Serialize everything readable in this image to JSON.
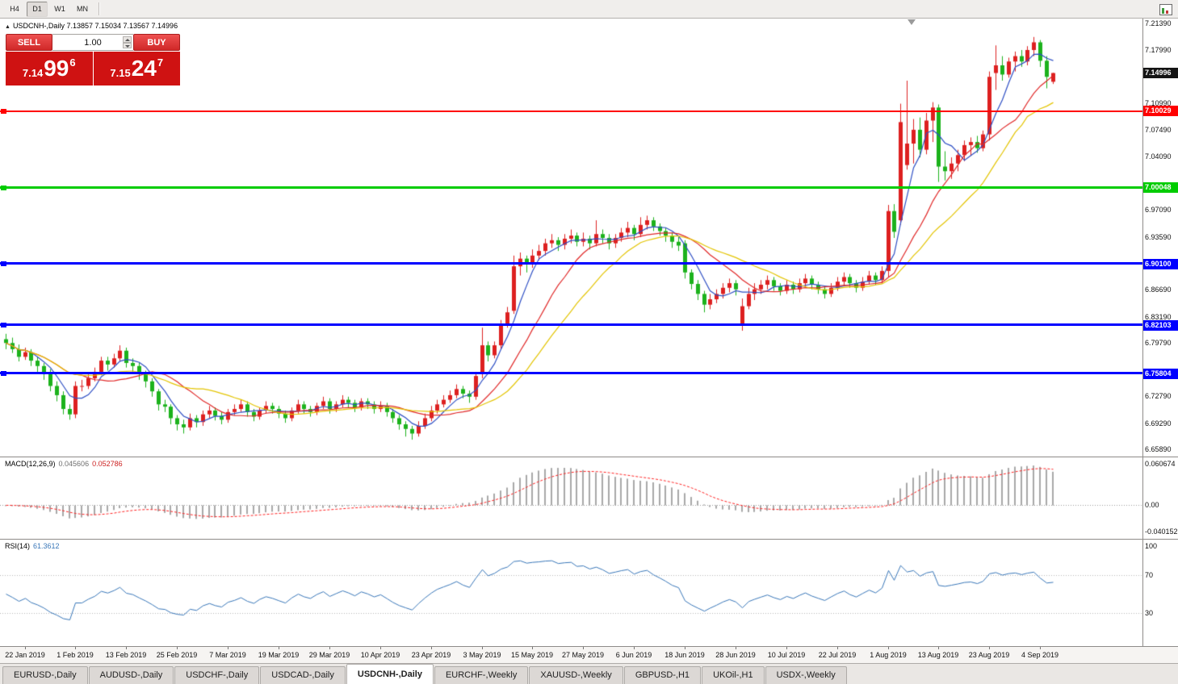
{
  "toolbar": {
    "timeframes": [
      {
        "label": "H4",
        "active": false
      },
      {
        "label": "D1",
        "active": true
      },
      {
        "label": "W1",
        "active": false
      },
      {
        "label": "MN",
        "active": false
      }
    ]
  },
  "chart": {
    "title": "USDCNH-,Daily 7.13857 7.15034 7.13567 7.14996",
    "collapse_arrow": "▲"
  },
  "trade_panel": {
    "sell_button": "SELL",
    "buy_button": "BUY",
    "volume": "1.00",
    "sell_price": {
      "prefix": "7.14",
      "pips": "99",
      "sup": "6"
    },
    "buy_price": {
      "prefix": "7.15",
      "pips": "24",
      "sup": "7"
    }
  },
  "indicators": {
    "macd_name": "MACD(12,26,9)",
    "macd_value_main": "0.045606",
    "macd_value_signal": "0.052786",
    "rsi_name": "RSI(14)",
    "rsi_value": "61.3612"
  },
  "tabs": [
    {
      "label": "EURUSD-,Daily",
      "active": false
    },
    {
      "label": "AUDUSD-,Daily",
      "active": false
    },
    {
      "label": "USDCHF-,Daily",
      "active": false
    },
    {
      "label": "USDCAD-,Daily",
      "active": false
    },
    {
      "label": "USDCNH-,Daily",
      "active": true
    },
    {
      "label": "EURCHF-,Weekly",
      "active": false
    },
    {
      "label": "XAUUSD-,Weekly",
      "active": false
    },
    {
      "label": "GBPUSD-,H1",
      "active": false
    },
    {
      "label": "UKOil-,H1",
      "active": false
    },
    {
      "label": "USDX-,Weekly",
      "active": false
    }
  ],
  "chart_data": {
    "type": "candlestick",
    "symbol": "USDCNH-",
    "timeframe": "Daily",
    "ohlc_current": {
      "open": 7.13857,
      "high": 7.15034,
      "low": 7.13567,
      "close": 7.14996
    },
    "bull_color": "#dd2020",
    "bear_color": "#1cb21c",
    "y_domain": [
      6.65,
      7.221
    ],
    "price_axis_labels": [
      "7.21390",
      "7.17990",
      "7.10990",
      "7.07490",
      "7.04090",
      "6.97090",
      "6.93590",
      "6.86690",
      "6.83190",
      "6.79790",
      "6.72790",
      "6.69290",
      "6.65890"
    ],
    "price_tags": {
      "current": {
        "label": "7.14996",
        "value": 7.14996,
        "bg": "#141414"
      }
    },
    "hlines": [
      {
        "price": 7.10029,
        "label": "7.10029",
        "color": "#ff0000",
        "width": 2
      },
      {
        "price": 7.00048,
        "label": "7.00048",
        "color": "#00cc00",
        "width": 3
      },
      {
        "price": 6.901,
        "label": "6.90100",
        "color": "#0000ff",
        "width": 3
      },
      {
        "price": 6.82103,
        "label": "6.82103",
        "color": "#0000ff",
        "width": 3
      },
      {
        "price": 6.75804,
        "label": "6.75804",
        "color": "#0000ff",
        "width": 3
      }
    ],
    "moving_averages": [
      {
        "name": "fast",
        "period": 5,
        "color": "#2e4fc4"
      },
      {
        "name": "medium",
        "period": 13,
        "color": "#e02828"
      },
      {
        "name": "slow",
        "period": 21,
        "color": "#e3c400"
      }
    ],
    "macd": {
      "fast": 12,
      "slow": 26,
      "signal": 9,
      "value_main": 0.045606,
      "value_signal": 0.052786,
      "domain": [
        -0.05,
        0.0715
      ],
      "axis_labels": [
        "0.060674",
        "0.00",
        "-0.040152"
      ],
      "histogram_color": "#a8a8a8",
      "signal_color": "#ff2020"
    },
    "rsi": {
      "period": 14,
      "value": 61.3612,
      "levels": [
        100,
        70,
        30
      ],
      "axis_labels": [
        "100",
        "70",
        "30"
      ],
      "color": "#3876b8"
    },
    "x_labels": [
      {
        "i": 3,
        "t": "22 Jan 2019"
      },
      {
        "i": 11,
        "t": "1 Feb 2019"
      },
      {
        "i": 19,
        "t": "13 Feb 2019"
      },
      {
        "i": 27,
        "t": "25 Feb 2019"
      },
      {
        "i": 35,
        "t": "7 Mar 2019"
      },
      {
        "i": 43,
        "t": "19 Mar 2019"
      },
      {
        "i": 51,
        "t": "29 Mar 2019"
      },
      {
        "i": 59,
        "t": "10 Apr 2019"
      },
      {
        "i": 67,
        "t": "23 Apr 2019"
      },
      {
        "i": 75,
        "t": "3 May 2019"
      },
      {
        "i": 83,
        "t": "15 May 2019"
      },
      {
        "i": 91,
        "t": "27 May 2019"
      },
      {
        "i": 99,
        "t": "6 Jun 2019"
      },
      {
        "i": 107,
        "t": "18 Jun 2019"
      },
      {
        "i": 115,
        "t": "28 Jun 2019"
      },
      {
        "i": 123,
        "t": "10 Jul 2019"
      },
      {
        "i": 131,
        "t": "22 Jul 2019"
      },
      {
        "i": 139,
        "t": "1 Aug 2019"
      },
      {
        "i": 147,
        "t": "13 Aug 2019"
      },
      {
        "i": 155,
        "t": "23 Aug 2019"
      },
      {
        "i": 163,
        "t": "4 Sep 2019"
      }
    ],
    "candles": [
      [
        6.803,
        6.81,
        6.79,
        6.798
      ],
      [
        6.798,
        6.805,
        6.785,
        6.79
      ],
      [
        6.79,
        6.796,
        6.774,
        6.78
      ],
      [
        6.78,
        6.792,
        6.776,
        6.786
      ],
      [
        6.786,
        6.79,
        6.768,
        6.775
      ],
      [
        6.775,
        6.78,
        6.76,
        6.768
      ],
      [
        6.768,
        6.772,
        6.75,
        6.758
      ],
      [
        6.758,
        6.764,
        6.735,
        6.742
      ],
      [
        6.742,
        6.748,
        6.722,
        6.73
      ],
      [
        6.73,
        6.735,
        6.705,
        6.712
      ],
      [
        6.712,
        6.718,
        6.698,
        6.705
      ],
      [
        6.705,
        6.748,
        6.7,
        6.742
      ],
      [
        6.742,
        6.75,
        6.735,
        6.742
      ],
      [
        6.742,
        6.758,
        6.738,
        6.752
      ],
      [
        6.752,
        6.766,
        6.748,
        6.76
      ],
      [
        6.76,
        6.78,
        6.756,
        6.775
      ],
      [
        6.775,
        6.78,
        6.762,
        6.77
      ],
      [
        6.77,
        6.784,
        6.766,
        6.778
      ],
      [
        6.778,
        6.795,
        6.774,
        6.788
      ],
      [
        6.788,
        6.792,
        6.766,
        6.772
      ],
      [
        6.772,
        6.778,
        6.76,
        6.768
      ],
      [
        6.768,
        6.772,
        6.75,
        6.758
      ],
      [
        6.758,
        6.762,
        6.74,
        6.748
      ],
      [
        6.748,
        6.752,
        6.728,
        6.735
      ],
      [
        6.735,
        6.738,
        6.71,
        6.718
      ],
      [
        6.718,
        6.724,
        6.708,
        6.715
      ],
      [
        6.715,
        6.718,
        6.692,
        6.7
      ],
      [
        6.7,
        6.704,
        6.684,
        6.692
      ],
      [
        6.692,
        6.698,
        6.68,
        6.688
      ],
      [
        6.688,
        6.706,
        6.684,
        6.7
      ],
      [
        6.7,
        6.704,
        6.688,
        6.695
      ],
      [
        6.695,
        6.71,
        6.69,
        6.705
      ],
      [
        6.705,
        6.716,
        6.7,
        6.71
      ],
      [
        6.71,
        6.714,
        6.697,
        6.703
      ],
      [
        6.703,
        6.708,
        6.692,
        6.698
      ],
      [
        6.698,
        6.712,
        6.694,
        6.708
      ],
      [
        6.708,
        6.718,
        6.704,
        6.712
      ],
      [
        6.712,
        6.724,
        6.708,
        6.718
      ],
      [
        6.718,
        6.722,
        6.702,
        6.708
      ],
      [
        6.708,
        6.712,
        6.696,
        6.702
      ],
      [
        6.702,
        6.714,
        6.698,
        6.71
      ],
      [
        6.71,
        6.722,
        6.706,
        6.716
      ],
      [
        6.716,
        6.72,
        6.706,
        6.712
      ],
      [
        6.712,
        6.716,
        6.7,
        6.706
      ],
      [
        6.706,
        6.71,
        6.694,
        6.7
      ],
      [
        6.7,
        6.714,
        6.696,
        6.71
      ],
      [
        6.71,
        6.724,
        6.706,
        6.718
      ],
      [
        6.718,
        6.722,
        6.706,
        6.712
      ],
      [
        6.712,
        6.716,
        6.702,
        6.708
      ],
      [
        6.708,
        6.72,
        6.704,
        6.716
      ],
      [
        6.716,
        6.728,
        6.712,
        6.722
      ],
      [
        6.722,
        6.726,
        6.706,
        6.712
      ],
      [
        6.712,
        6.722,
        6.708,
        6.718
      ],
      [
        6.718,
        6.73,
        6.714,
        6.724
      ],
      [
        6.724,
        6.728,
        6.714,
        6.72
      ],
      [
        6.72,
        6.724,
        6.708,
        6.714
      ],
      [
        6.714,
        6.726,
        6.71,
        6.722
      ],
      [
        6.722,
        6.726,
        6.712,
        6.718
      ],
      [
        6.718,
        6.722,
        6.706,
        6.712
      ],
      [
        6.712,
        6.722,
        6.708,
        6.716
      ],
      [
        6.716,
        6.72,
        6.702,
        6.708
      ],
      [
        6.708,
        6.712,
        6.694,
        6.7
      ],
      [
        6.7,
        6.704,
        6.685,
        6.692
      ],
      [
        6.692,
        6.696,
        6.676,
        6.686
      ],
      [
        6.686,
        6.69,
        6.672,
        6.68
      ],
      [
        6.68,
        6.696,
        6.676,
        6.69
      ],
      [
        6.69,
        6.706,
        6.686,
        6.7
      ],
      [
        6.7,
        6.716,
        6.696,
        6.71
      ],
      [
        6.71,
        6.724,
        6.706,
        6.718
      ],
      [
        6.718,
        6.73,
        6.714,
        6.724
      ],
      [
        6.724,
        6.736,
        6.72,
        6.73
      ],
      [
        6.73,
        6.744,
        6.726,
        6.738
      ],
      [
        6.738,
        6.742,
        6.726,
        6.732
      ],
      [
        6.732,
        6.736,
        6.72,
        6.728
      ],
      [
        6.728,
        6.76,
        6.724,
        6.755
      ],
      [
        6.758,
        6.818,
        6.752,
        6.795
      ],
      [
        6.795,
        6.8,
        6.774,
        6.782
      ],
      [
        6.782,
        6.8,
        6.778,
        6.795
      ],
      [
        6.795,
        6.828,
        6.79,
        6.822
      ],
      [
        6.822,
        6.845,
        6.818,
        6.838
      ],
      [
        6.84,
        6.912,
        6.836,
        6.898
      ],
      [
        6.898,
        6.916,
        6.886,
        6.908
      ],
      [
        6.908,
        6.912,
        6.89,
        6.902
      ],
      [
        6.902,
        6.92,
        6.896,
        6.912
      ],
      [
        6.912,
        6.926,
        6.906,
        6.918
      ],
      [
        6.918,
        6.934,
        6.912,
        6.928
      ],
      [
        6.928,
        6.94,
        6.922,
        6.932
      ],
      [
        6.932,
        6.936,
        6.918,
        6.926
      ],
      [
        6.926,
        6.94,
        6.92,
        6.934
      ],
      [
        6.934,
        6.946,
        6.928,
        6.938
      ],
      [
        6.938,
        6.942,
        6.924,
        6.93
      ],
      [
        6.93,
        6.942,
        6.924,
        6.934
      ],
      [
        6.934,
        6.938,
        6.92,
        6.928
      ],
      [
        6.928,
        6.958,
        6.924,
        6.94
      ],
      [
        6.94,
        6.946,
        6.928,
        6.935
      ],
      [
        6.935,
        6.94,
        6.92,
        6.928
      ],
      [
        6.928,
        6.94,
        6.922,
        6.935
      ],
      [
        6.935,
        6.948,
        6.93,
        6.942
      ],
      [
        6.942,
        6.956,
        6.936,
        6.948
      ],
      [
        6.948,
        6.952,
        6.932,
        6.94
      ],
      [
        6.94,
        6.962,
        6.936,
        6.952
      ],
      [
        6.952,
        6.964,
        6.946,
        6.958
      ],
      [
        6.958,
        6.962,
        6.944,
        6.95
      ],
      [
        6.95,
        6.954,
        6.938,
        6.944
      ],
      [
        6.944,
        6.948,
        6.93,
        6.938
      ],
      [
        6.938,
        6.942,
        6.922,
        6.93
      ],
      [
        6.93,
        6.936,
        6.918,
        6.925
      ],
      [
        6.928,
        6.932,
        6.882,
        6.89
      ],
      [
        6.89,
        6.894,
        6.868,
        6.875
      ],
      [
        6.875,
        6.88,
        6.854,
        6.862
      ],
      [
        6.862,
        6.866,
        6.838,
        6.848
      ],
      [
        6.848,
        6.862,
        6.842,
        6.855
      ],
      [
        6.855,
        6.868,
        6.85,
        6.862
      ],
      [
        6.862,
        6.876,
        6.856,
        6.87
      ],
      [
        6.87,
        6.882,
        6.864,
        6.876
      ],
      [
        6.876,
        6.88,
        6.86,
        6.868
      ],
      [
        6.822,
        6.856,
        6.814,
        6.846
      ],
      [
        6.846,
        6.87,
        6.842,
        6.862
      ],
      [
        6.862,
        6.876,
        6.854,
        6.868
      ],
      [
        6.868,
        6.88,
        6.862,
        6.874
      ],
      [
        6.874,
        6.886,
        6.868,
        6.88
      ],
      [
        6.88,
        6.884,
        6.866,
        6.872
      ],
      [
        6.872,
        6.876,
        6.86,
        6.866
      ],
      [
        6.866,
        6.88,
        6.862,
        6.874
      ],
      [
        6.874,
        6.878,
        6.862,
        6.868
      ],
      [
        6.868,
        6.882,
        6.864,
        6.876
      ],
      [
        6.876,
        6.888,
        6.872,
        6.882
      ],
      [
        6.882,
        6.886,
        6.868,
        6.874
      ],
      [
        6.874,
        6.878,
        6.862,
        6.868
      ],
      [
        6.868,
        6.872,
        6.856,
        6.862
      ],
      [
        6.862,
        6.876,
        6.858,
        6.87
      ],
      [
        6.87,
        6.884,
        6.866,
        6.878
      ],
      [
        6.878,
        6.89,
        6.874,
        6.884
      ],
      [
        6.884,
        6.888,
        6.87,
        6.876
      ],
      [
        6.876,
        6.88,
        6.864,
        6.87
      ],
      [
        6.87,
        6.884,
        6.866,
        6.878
      ],
      [
        6.878,
        6.892,
        6.874,
        6.886
      ],
      [
        6.886,
        6.89,
        6.874,
        6.88
      ],
      [
        6.88,
        6.898,
        6.876,
        6.892
      ],
      [
        6.892,
        6.978,
        6.884,
        6.97
      ],
      [
        6.97,
        6.979,
        6.935,
        6.943
      ],
      [
        6.958,
        7.11,
        6.952,
        7.086
      ],
      [
        7.03,
        7.14,
        7.024,
        7.058
      ],
      [
        7.058,
        7.09,
        7.032,
        7.076
      ],
      [
        7.076,
        7.092,
        7.04,
        7.05
      ],
      [
        7.05,
        7.098,
        7.044,
        7.088
      ],
      [
        7.088,
        7.112,
        7.06,
        7.105
      ],
      [
        7.105,
        7.109,
        7.008,
        7.028
      ],
      [
        7.028,
        7.048,
        7.01,
        7.022
      ],
      [
        7.022,
        7.04,
        7.012,
        7.032
      ],
      [
        7.032,
        7.05,
        7.022,
        7.043
      ],
      [
        7.043,
        7.062,
        7.035,
        7.056
      ],
      [
        7.056,
        7.066,
        7.042,
        7.06
      ],
      [
        7.06,
        7.068,
        7.046,
        7.052
      ],
      [
        7.052,
        7.075,
        7.048,
        7.07
      ],
      [
        7.07,
        7.152,
        7.062,
        7.145
      ],
      [
        7.15,
        7.186,
        7.128,
        7.16
      ],
      [
        7.16,
        7.172,
        7.14,
        7.148
      ],
      [
        7.148,
        7.17,
        7.144,
        7.165
      ],
      [
        7.165,
        7.178,
        7.152,
        7.172
      ],
      [
        7.172,
        7.18,
        7.158,
        7.165
      ],
      [
        7.165,
        7.185,
        7.16,
        7.18
      ],
      [
        7.18,
        7.197,
        7.172,
        7.19
      ],
      [
        7.19,
        7.193,
        7.158,
        7.166
      ],
      [
        7.166,
        7.172,
        7.13,
        7.145
      ],
      [
        7.13857,
        7.15034,
        7.13567,
        7.14996
      ]
    ]
  }
}
